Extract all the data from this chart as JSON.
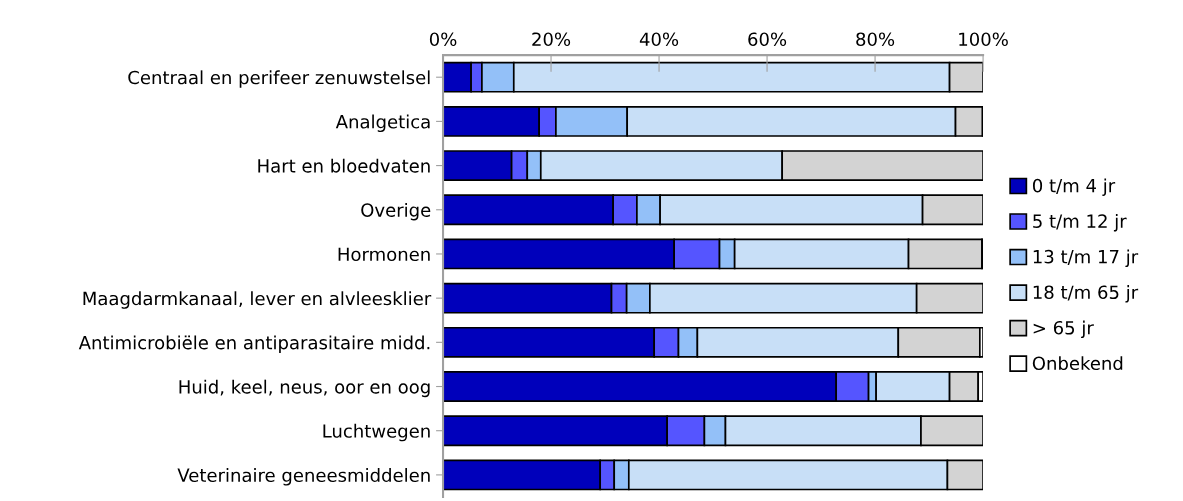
{
  "chart_data": {
    "type": "bar",
    "orientation": "horizontal",
    "stacked": true,
    "categories": [
      "Centraal en perifeer zenuwstelsel",
      "Analgetica",
      "Hart en bloedvaten",
      "Overige",
      "Hormonen",
      "Maagdarmkanaal, lever en alvleesklier",
      "Antimicrobiële en antiparasitaire midd.",
      "Huid, keel, neus, oor en oog",
      "Luchtwegen",
      "Veterinaire geneesmiddelen"
    ],
    "series": [
      {
        "name": "0 t/m 4 jr",
        "color": "#0000bb",
        "values": [
          5.2,
          17.8,
          12.7,
          31.5,
          42.8,
          31.2,
          39.1,
          72.8,
          41.5,
          29.1
        ]
      },
      {
        "name": "5 t/m 12 jr",
        "color": "#5555ff",
        "values": [
          2.0,
          3.1,
          2.9,
          4.4,
          8.4,
          2.8,
          4.5,
          6.0,
          6.9,
          2.6
        ]
      },
      {
        "name": "13 t/m 17 jr",
        "color": "#93c0f8",
        "values": [
          5.9,
          13.2,
          2.5,
          4.3,
          2.8,
          4.3,
          3.5,
          1.4,
          3.9,
          2.7
        ]
      },
      {
        "name": "18 t/m 65 jr",
        "color": "#c8dff7",
        "values": [
          80.7,
          60.8,
          44.7,
          48.6,
          32.2,
          49.4,
          37.2,
          13.6,
          36.2,
          59.0
        ]
      },
      {
        "name": "> 65 jr",
        "color": "#d3d3d3",
        "values": [
          6.2,
          5.0,
          37.2,
          11.2,
          13.6,
          12.3,
          15.1,
          5.3,
          11.5,
          6.6
        ]
      },
      {
        "name": "Onbekend",
        "color": "#ffffff",
        "values": [
          null,
          0.1,
          null,
          null,
          0.2,
          null,
          0.6,
          0.9,
          null,
          null
        ]
      }
    ],
    "xlim": [
      0,
      100
    ],
    "xticks": [
      {
        "value": 0,
        "label": "0%"
      },
      {
        "value": 20,
        "label": "20%"
      },
      {
        "value": 40,
        "label": "40%"
      },
      {
        "value": 60,
        "label": "60%"
      },
      {
        "value": 80,
        "label": "80%"
      },
      {
        "value": 100,
        "label": "100%"
      }
    ],
    "grid": false,
    "legend": "right"
  }
}
